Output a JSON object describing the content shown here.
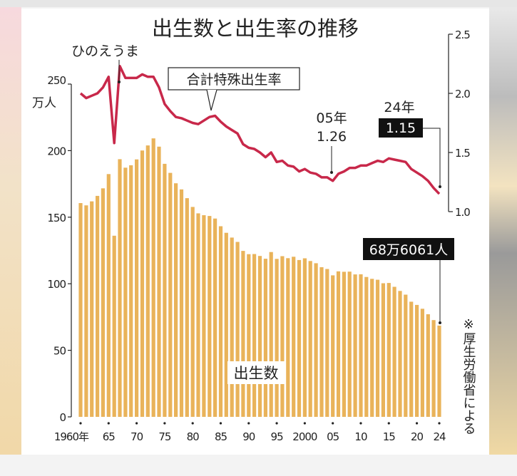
{
  "chart_data": {
    "type": "bar+line",
    "title": "出生数と出生率の推移",
    "left_axis": {
      "unit_label": "万人",
      "ylim": [
        0,
        250
      ],
      "ticks": [
        0,
        50,
        100,
        150,
        200,
        250
      ],
      "tick_labels": [
        "0",
        "50",
        "100",
        "150",
        "200",
        "250"
      ]
    },
    "right_axis": {
      "ylim": [
        1.0,
        2.5
      ],
      "ticks": [
        1.0,
        1.5,
        2.0,
        2.5
      ],
      "tick_labels": [
        "1.0",
        "1.5",
        "2.0",
        "2.5"
      ]
    },
    "x_tick_labels": [
      {
        "year": 1960,
        "label": "1960年"
      },
      {
        "year": 1965,
        "label": "65"
      },
      {
        "year": 1970,
        "label": "70"
      },
      {
        "year": 1975,
        "label": "75"
      },
      {
        "year": 1980,
        "label": "80"
      },
      {
        "year": 1985,
        "label": "85"
      },
      {
        "year": 1990,
        "label": "90"
      },
      {
        "year": 1995,
        "label": "95"
      },
      {
        "year": 2000,
        "label": "2000"
      },
      {
        "year": 2005,
        "label": "05"
      },
      {
        "year": 2010,
        "label": "10"
      },
      {
        "year": 2015,
        "label": "15"
      },
      {
        "year": 2020,
        "label": "20"
      },
      {
        "year": 2024,
        "label": "24"
      }
    ],
    "x_start": 1960,
    "series": [
      {
        "name": "出生数",
        "axis": "left",
        "color": "#e9b35a",
        "values": [
          160.6,
          158.9,
          161.9,
          166.0,
          171.7,
          182.4,
          136.1,
          193.6,
          187.2,
          189.0,
          193.4,
          200.1,
          203.9,
          209.2,
          203.0,
          190.1,
          183.3,
          175.5,
          170.9,
          164.3,
          157.7,
          152.9,
          151.5,
          150.9,
          149.0,
          143.2,
          138.3,
          134.7,
          131.4,
          124.7,
          122.2,
          122.3,
          120.9,
          118.8,
          123.8,
          118.7,
          120.7,
          119.2,
          120.3,
          117.8,
          119.1,
          117.1,
          115.4,
          112.4,
          111.1,
          106.3,
          109.3,
          109.0,
          109.1,
          107.0,
          107.1,
          105.1,
          103.7,
          103.0,
          100.4,
          100.6,
          97.7,
          94.6,
          91.8,
          86.5,
          84.1,
          81.2,
          77.1,
          72.7,
          68.6
        ]
      },
      {
        "name": "合計特殊出生率",
        "axis": "right",
        "color": "#c8284a",
        "values": [
          2.0,
          1.96,
          1.98,
          2.0,
          2.05,
          2.14,
          1.58,
          2.23,
          2.13,
          2.13,
          2.13,
          2.16,
          2.14,
          2.14,
          2.05,
          1.91,
          1.85,
          1.8,
          1.79,
          1.77,
          1.75,
          1.74,
          1.77,
          1.8,
          1.81,
          1.76,
          1.72,
          1.69,
          1.66,
          1.57,
          1.54,
          1.53,
          1.5,
          1.46,
          1.5,
          1.42,
          1.43,
          1.39,
          1.38,
          1.34,
          1.36,
          1.33,
          1.32,
          1.29,
          1.29,
          1.26,
          1.32,
          1.34,
          1.37,
          1.37,
          1.39,
          1.39,
          1.41,
          1.43,
          1.42,
          1.45,
          1.44,
          1.43,
          1.42,
          1.36,
          1.33,
          1.3,
          1.26,
          1.2,
          1.15
        ]
      }
    ],
    "annotations": {
      "hinoeuma": "ひのえうま",
      "rate_label": "合計特殊出生率",
      "births_label": "出生数",
      "y2005_year": "05年",
      "y2005_value": "1.26",
      "y2024_year": "24年",
      "y2024_value": "1.15",
      "births_2024": "68万6061人",
      "source": "※厚生労働省による"
    }
  }
}
